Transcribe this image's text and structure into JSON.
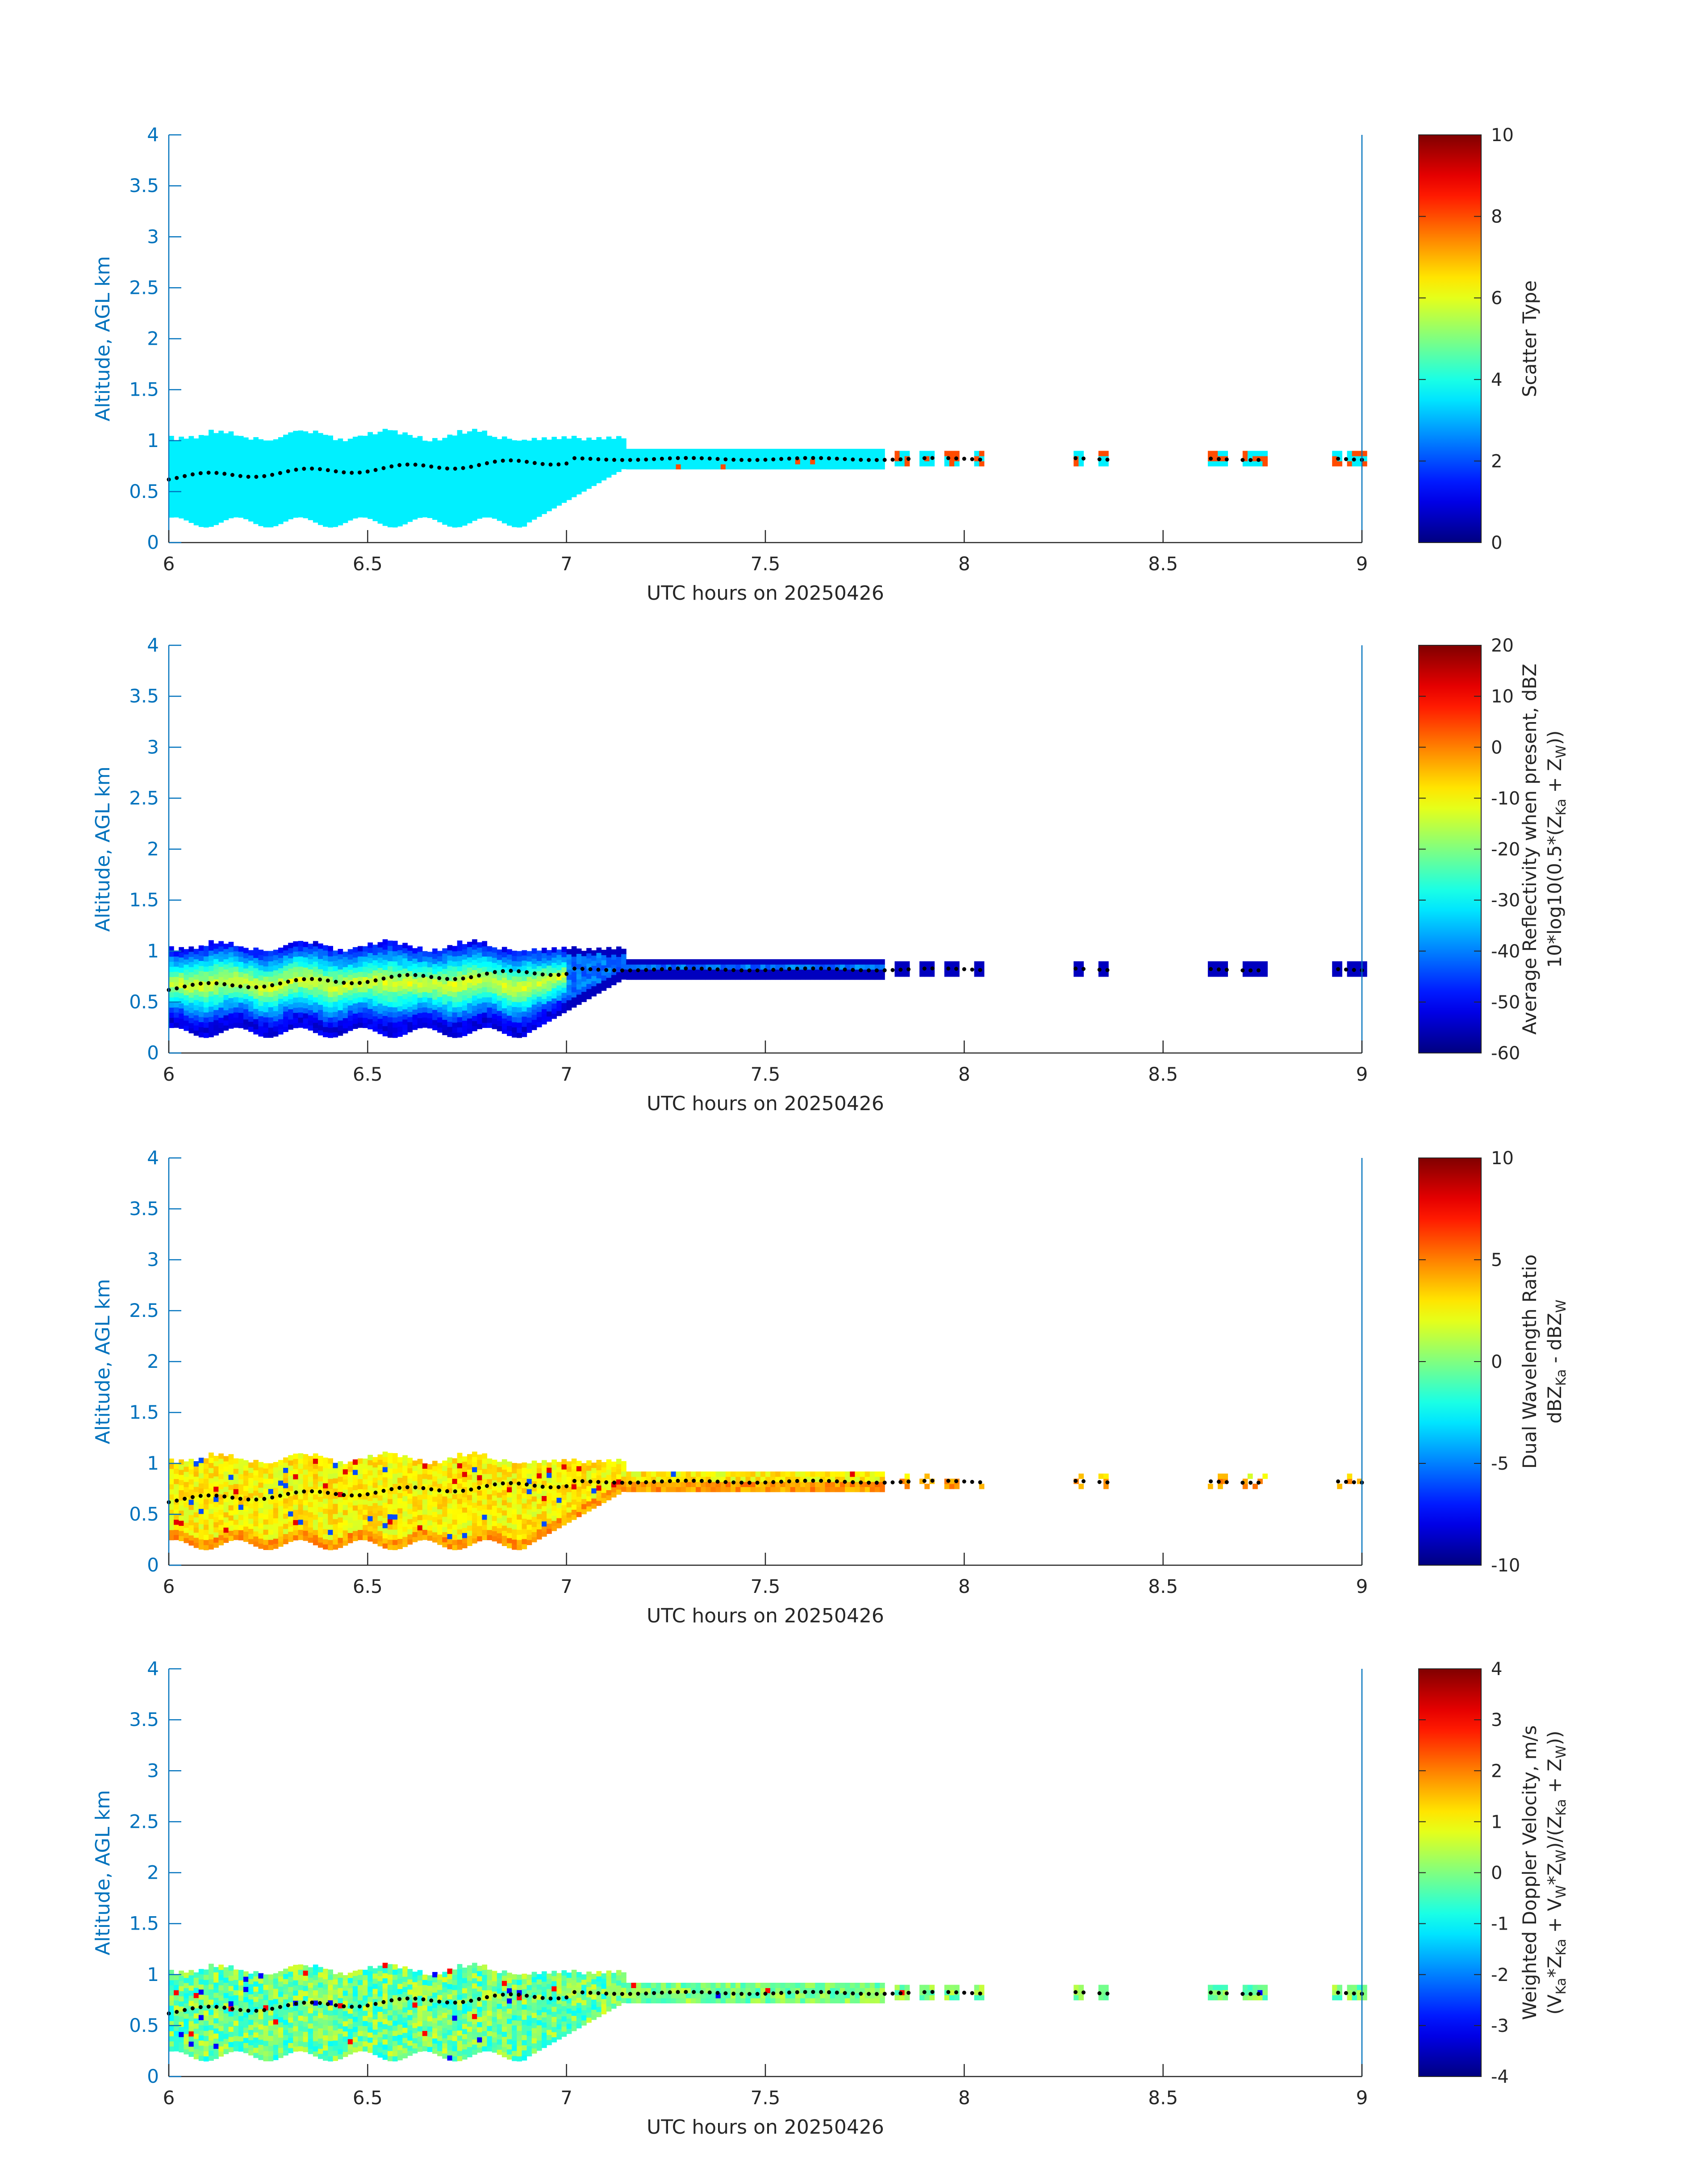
{
  "figure": {
    "background": "#ffffff",
    "axis_color": "#0072BD",
    "colorbar_frame": "#262626",
    "text_color": "#262626",
    "dot_color": "#000000"
  },
  "chart_data": [
    {
      "type": "heatmap",
      "xlabel": "UTC hours on 20250426",
      "ylabel": "Altitude, AGL km",
      "xlim": [
        6,
        9
      ],
      "ylim": [
        0,
        4
      ],
      "xticks": [
        "6",
        "6.5",
        "7",
        "7.5",
        "8",
        "8.5",
        "9"
      ],
      "yticks": [
        "0",
        "0.5",
        "1",
        "1.5",
        "2",
        "2.5",
        "3",
        "3.5",
        "4"
      ],
      "colorbar": {
        "label_lines": [
          "Scatter Type"
        ],
        "range": [
          0,
          10
        ],
        "ticks": [
          "0",
          "2",
          "4",
          "6",
          "8",
          "10"
        ]
      },
      "profile": "scatter_type"
    },
    {
      "type": "heatmap",
      "xlabel": "UTC hours on 20250426",
      "ylabel": "Altitude, AGL km",
      "xlim": [
        6,
        9
      ],
      "ylim": [
        0,
        4
      ],
      "xticks": [
        "6",
        "6.5",
        "7",
        "7.5",
        "8",
        "8.5",
        "9"
      ],
      "yticks": [
        "0",
        "0.5",
        "1",
        "1.5",
        "2",
        "2.5",
        "3",
        "3.5",
        "4"
      ],
      "colorbar": {
        "label_lines": [
          "Average Reflectivity when present, dBZ",
          "10*log10(0.5*(Z",
          "Ka",
          " + Z",
          "W",
          "))"
        ],
        "range": [
          -60,
          20
        ],
        "ticks": [
          "-60",
          "-50",
          "-40",
          "-30",
          "-20",
          "-10",
          "0",
          "10",
          "20"
        ]
      },
      "profile": "reflectivity"
    },
    {
      "type": "heatmap",
      "xlabel": "UTC hours on 20250426",
      "ylabel": "Altitude, AGL km",
      "xlim": [
        6,
        9
      ],
      "ylim": [
        0,
        4
      ],
      "xticks": [
        "6",
        "6.5",
        "7",
        "7.5",
        "8",
        "8.5",
        "9"
      ],
      "yticks": [
        "0",
        "0.5",
        "1",
        "1.5",
        "2",
        "2.5",
        "3",
        "3.5",
        "4"
      ],
      "colorbar": {
        "label_lines": [
          "Dual Wavelength Ratio",
          "dBZ",
          "Ka",
          " - dBZ",
          "W"
        ],
        "range": [
          -10,
          10
        ],
        "ticks": [
          "-10",
          "-5",
          "0",
          "5",
          "10"
        ]
      },
      "profile": "dwr"
    },
    {
      "type": "heatmap",
      "xlabel": "UTC hours on 20250426",
      "ylabel": "Altitude, AGL km",
      "xlim": [
        6,
        9
      ],
      "ylim": [
        0,
        4
      ],
      "xticks": [
        "6",
        "6.5",
        "7",
        "7.5",
        "8",
        "8.5",
        "9"
      ],
      "yticks": [
        "0",
        "0.5",
        "1",
        "1.5",
        "2",
        "2.5",
        "3",
        "3.5",
        "4"
      ],
      "colorbar": {
        "label_lines": [
          "Weighted Doppler Velocity, m/s",
          "(V",
          "Ka",
          "*Z",
          "Ka",
          " + V",
          "W",
          "*Z",
          "W",
          ")/(Z",
          "Ka",
          " + Z",
          "W",
          "))"
        ],
        "range": [
          -4,
          4
        ],
        "ticks": [
          "-4",
          "-3",
          "-2",
          "-1",
          "0",
          "1",
          "2",
          "3",
          "4"
        ]
      },
      "profile": "velocity"
    }
  ]
}
